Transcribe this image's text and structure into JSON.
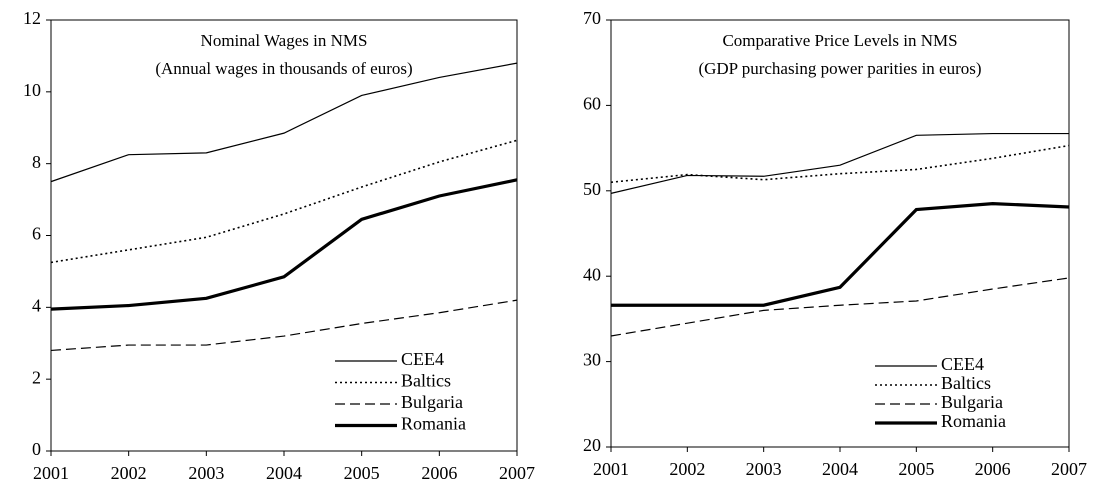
{
  "chart_data": [
    {
      "type": "line",
      "title": "Nominal Wages in NMS",
      "subtitle": "(Annual wages in thousands of euros)",
      "x": [
        2001,
        2002,
        2003,
        2004,
        2005,
        2006,
        2007
      ],
      "xlim": [
        2001,
        2007
      ],
      "xticks": [
        2001,
        2002,
        2003,
        2004,
        2005,
        2006,
        2007
      ],
      "ylim": [
        0,
        12
      ],
      "yticks": [
        0,
        2,
        4,
        6,
        8,
        10,
        12
      ],
      "legend": "lower right",
      "series": [
        {
          "name": "CEE4",
          "color": "#000000",
          "style": "solid",
          "values": [
            7.5,
            8.25,
            8.3,
            8.85,
            9.9,
            10.4,
            10.8
          ]
        },
        {
          "name": "Baltics",
          "color": "#000000",
          "style": "dotted",
          "values": [
            5.25,
            5.6,
            5.95,
            6.6,
            7.35,
            8.05,
            8.65
          ]
        },
        {
          "name": "Bulgaria",
          "color": "#000000",
          "style": "dashed",
          "values": [
            2.8,
            2.95,
            2.95,
            3.2,
            3.55,
            3.85,
            4.2
          ]
        },
        {
          "name": "Romania",
          "color": "#000000",
          "style": "thick",
          "values": [
            3.95,
            4.05,
            4.25,
            4.85,
            6.45,
            7.1,
            7.55
          ]
        }
      ]
    },
    {
      "type": "line",
      "title": "Comparative Price Levels in NMS",
      "subtitle": "(GDP purchasing power parities in euros)",
      "x": [
        2001,
        2002,
        2003,
        2004,
        2005,
        2006,
        2007
      ],
      "xlim": [
        2001,
        2007
      ],
      "xticks": [
        2001,
        2002,
        2003,
        2004,
        2005,
        2006,
        2007
      ],
      "ylim": [
        20,
        70
      ],
      "yticks": [
        20,
        30,
        40,
        50,
        60,
        70
      ],
      "legend": "lower right",
      "series": [
        {
          "name": "CEE4",
          "color": "#000000",
          "style": "solid",
          "values": [
            49.7,
            51.8,
            51.7,
            53,
            56.5,
            56.7,
            56.7
          ]
        },
        {
          "name": "Baltics",
          "color": "#000000",
          "style": "dotted",
          "values": [
            51,
            51.9,
            51.3,
            52,
            52.5,
            53.8,
            55.3
          ]
        },
        {
          "name": "Bulgaria",
          "color": "#000000",
          "style": "dashed",
          "values": [
            33,
            34.5,
            36,
            36.6,
            37.1,
            38.5,
            39.8
          ]
        },
        {
          "name": "Romania",
          "color": "#000000",
          "style": "thick",
          "values": [
            36.6,
            36.6,
            36.6,
            38.7,
            47.8,
            48.5,
            48.1
          ]
        }
      ]
    }
  ]
}
